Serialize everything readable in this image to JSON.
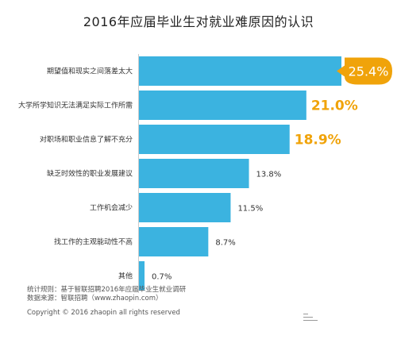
{
  "chart_data": {
    "type": "bar",
    "orientation": "horizontal",
    "title": "2016年应届毕业生对就业难原因的认识",
    "categories": [
      "期望值和现实之间落差太大",
      "大学所学知识无法满足实际工作所需",
      "对职场和职业信息了解不充分",
      "缺乏时效性的职业发展建议",
      "工作机会减少",
      "找工作的主观能动性不高",
      "其他"
    ],
    "values": [
      25.4,
      21.0,
      18.9,
      13.8,
      11.5,
      8.7,
      0.7
    ],
    "value_labels": [
      "25.4%",
      "21.0%",
      "18.9%",
      "13.8%",
      "11.5%",
      "8.7%",
      "0.7%"
    ],
    "unit": "%",
    "xlim": [
      0,
      25.4
    ],
    "grid": false,
    "legend": "none",
    "bar_color": "#3bb3e0",
    "highlight_color": "#f0a30a"
  },
  "footer": {
    "note_stat": "统计规则：基于智联招聘2016年应届毕业生就业调研",
    "note_source": "数据来源：智联招聘（www.zhaopin.com）",
    "copyright": "Copyright © 2016 zhaopin all rights reserved"
  }
}
